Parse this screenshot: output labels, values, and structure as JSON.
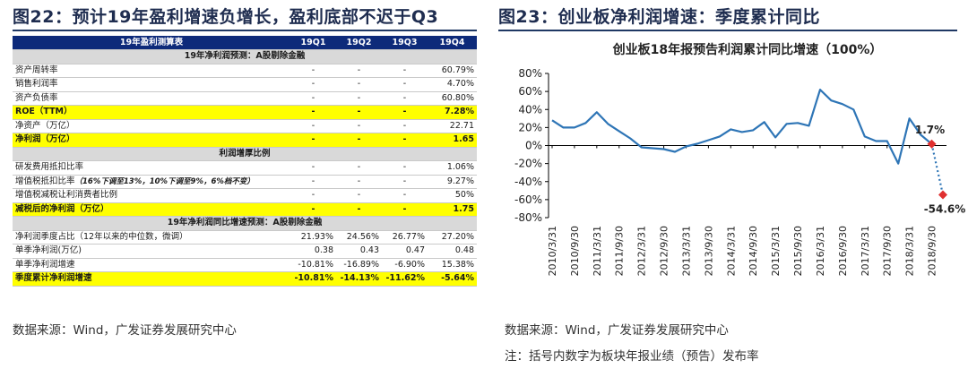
{
  "left": {
    "title": "图22：预计19年盈利增速负增长，盈利底部不迟于Q3",
    "table": {
      "header": [
        "19年盈利测算表",
        "19Q1",
        "19Q2",
        "19Q3",
        "19Q4"
      ],
      "rows": [
        {
          "kind": "sec",
          "label": "19年净利润预测：A股剔除金融"
        },
        {
          "kind": "row",
          "label": "资产周转率",
          "cells": [
            "-",
            "-",
            "-",
            "60.79%"
          ]
        },
        {
          "kind": "row",
          "label": "销售利润率",
          "cells": [
            "-",
            "-",
            "-",
            "4.70%"
          ]
        },
        {
          "kind": "row",
          "label": "资产负债率",
          "cells": [
            "-",
            "-",
            "-",
            "60.80%"
          ]
        },
        {
          "kind": "hl",
          "label": "ROE（TTM）",
          "cells": [
            "-",
            "-",
            "-",
            "7.28%"
          ]
        },
        {
          "kind": "row",
          "label": "净资产（万亿）",
          "cells": [
            "-",
            "-",
            "-",
            "22.71"
          ]
        },
        {
          "kind": "hl",
          "label": "净利润（万亿）",
          "cells": [
            "-",
            "-",
            "-",
            "1.65"
          ]
        },
        {
          "kind": "sec",
          "label": "利润增厚比例"
        },
        {
          "kind": "row",
          "label": "研发费用抵扣比率",
          "cells": [
            "-",
            "-",
            "-",
            "1.06%"
          ]
        },
        {
          "kind": "row",
          "label": "增值税抵扣比率",
          "note": "（16%下调至13%，10%下调至9%，6%档不变）",
          "cells": [
            "-",
            "-",
            "-",
            "9.27%"
          ]
        },
        {
          "kind": "row",
          "label": "增值税减税让利消费者比例",
          "cells": [
            "-",
            "-",
            "-",
            "50%"
          ]
        },
        {
          "kind": "hl",
          "label": "减税后的净利润（万亿）",
          "cells": [
            "-",
            "-",
            "-",
            "1.75"
          ]
        },
        {
          "kind": "sec",
          "label": "19年净利润同比增速预测：A股剔除金融"
        },
        {
          "kind": "row",
          "label": "净利润季度占比（12年以来的中位数，微调）",
          "cells": [
            "21.93%",
            "24.56%",
            "26.77%",
            "27.20%"
          ]
        },
        {
          "kind": "row",
          "label": "单季净利润(万亿)",
          "cells": [
            "0.38",
            "0.43",
            "0.47",
            "0.48"
          ]
        },
        {
          "kind": "row",
          "label": "单季净利润增速",
          "cells": [
            "-10.81%",
            "-16.89%",
            "-6.90%",
            "15.38%"
          ]
        },
        {
          "kind": "hl",
          "label": "季度累计净利润增速",
          "cells": [
            "-10.81%",
            "-14.13%",
            "-11.62%",
            "-5.64%"
          ]
        }
      ]
    },
    "source": "数据来源：Wind，广发证券发展研究中心"
  },
  "right": {
    "title": "图23：创业板净利润增速：季度累计同比",
    "source": "数据来源：Wind，广发证券发展研究中心",
    "note": "注：括号内数字为板块年报业绩（预告）发布率"
  },
  "chart_data": {
    "type": "line",
    "title": "创业板18年报预告利润累计同比增速（100%）",
    "x": [
      "2010/3/31",
      "2010/6/30",
      "2010/9/30",
      "2010/12/31",
      "2011/3/31",
      "2011/6/30",
      "2011/9/30",
      "2011/12/31",
      "2012/3/31",
      "2012/6/30",
      "2012/9/30",
      "2012/12/31",
      "2013/3/31",
      "2013/6/30",
      "2013/9/30",
      "2013/12/31",
      "2014/3/31",
      "2014/6/30",
      "2014/9/30",
      "2014/12/31",
      "2015/3/31",
      "2015/6/30",
      "2015/9/30",
      "2015/12/31",
      "2016/3/31",
      "2016/6/30",
      "2016/9/30",
      "2016/12/31",
      "2017/3/31",
      "2017/6/30",
      "2017/9/30",
      "2017/12/31",
      "2018/3/31",
      "2018/6/30",
      "2018/9/30",
      "2018/12/31"
    ],
    "xticks": [
      "2010/3/31",
      "2010/9/30",
      "2011/3/31",
      "2011/9/30",
      "2012/3/31",
      "2012/9/30",
      "2013/3/31",
      "2013/9/30",
      "2014/3/31",
      "2014/9/30",
      "2015/3/31",
      "2015/9/30",
      "2016/3/31",
      "2016/9/30",
      "2017/3/31",
      "2017/9/30",
      "2018/3/31",
      "2018/9/30"
    ],
    "series": [
      {
        "values": [
          28,
          20,
          20,
          25,
          37,
          24,
          16,
          8,
          -2,
          -3,
          -4,
          -7,
          -1,
          2,
          6,
          10,
          18,
          15,
          17,
          26,
          9,
          24,
          25,
          22,
          62,
          50,
          46,
          40,
          10,
          5,
          5,
          -20,
          30,
          12,
          1.7,
          -54.6
        ]
      }
    ],
    "annotations": [
      {
        "x": "2018/9/30",
        "label": "1.7%"
      },
      {
        "x": "2018/12/31",
        "label": "-54.6%"
      }
    ],
    "yticks": [
      "80%",
      "60%",
      "40%",
      "20%",
      "0%",
      "-20%",
      "-40%",
      "-60%",
      "-80%"
    ],
    "ylim": [
      -80,
      80
    ],
    "grid": false,
    "legend": "none",
    "colors": {
      "line": "#2e75b6",
      "marker": "#e03030",
      "label_neg": "#e03030",
      "title": "#1f2d50"
    }
  }
}
